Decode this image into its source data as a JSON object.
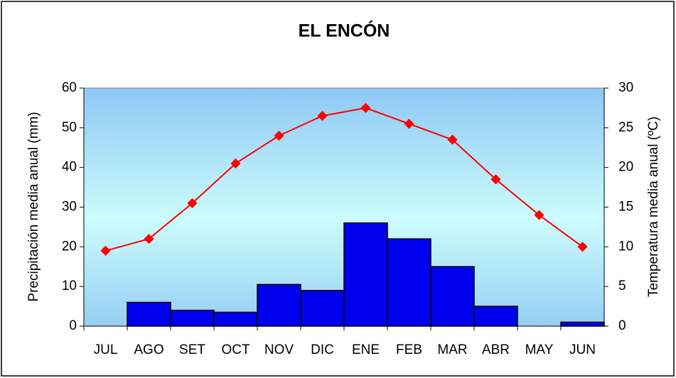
{
  "chart_data": {
    "type": "combo",
    "title": "EL ENCÓN",
    "ylabel": "Precipitación media anual (mm)",
    "y2label": "Temperatura media anual (ºC)",
    "categories": [
      "JUL",
      "AGO",
      "SET",
      "OCT",
      "NOV",
      "DIC",
      "ENE",
      "FEB",
      "MAR",
      "ABR",
      "MAY",
      "JUN"
    ],
    "series": [
      {
        "type": "bar",
        "color": "#0000ee",
        "axis": "y",
        "values": [
          0,
          6,
          4,
          3.5,
          10.5,
          9,
          26,
          22,
          15,
          5,
          0,
          1
        ]
      },
      {
        "type": "line",
        "color": "#ff0000",
        "axis": "y2",
        "values": [
          9.5,
          11,
          15.5,
          20.5,
          24,
          26.5,
          27.5,
          25.5,
          23.5,
          18.5,
          14,
          10
        ]
      }
    ],
    "ylim": [
      0,
      60
    ],
    "yticks": [
      0,
      10,
      20,
      30,
      40,
      50,
      60
    ],
    "y2lim": [
      0,
      30
    ],
    "y2ticks": [
      0,
      5,
      10,
      15,
      20,
      25,
      30
    ]
  }
}
